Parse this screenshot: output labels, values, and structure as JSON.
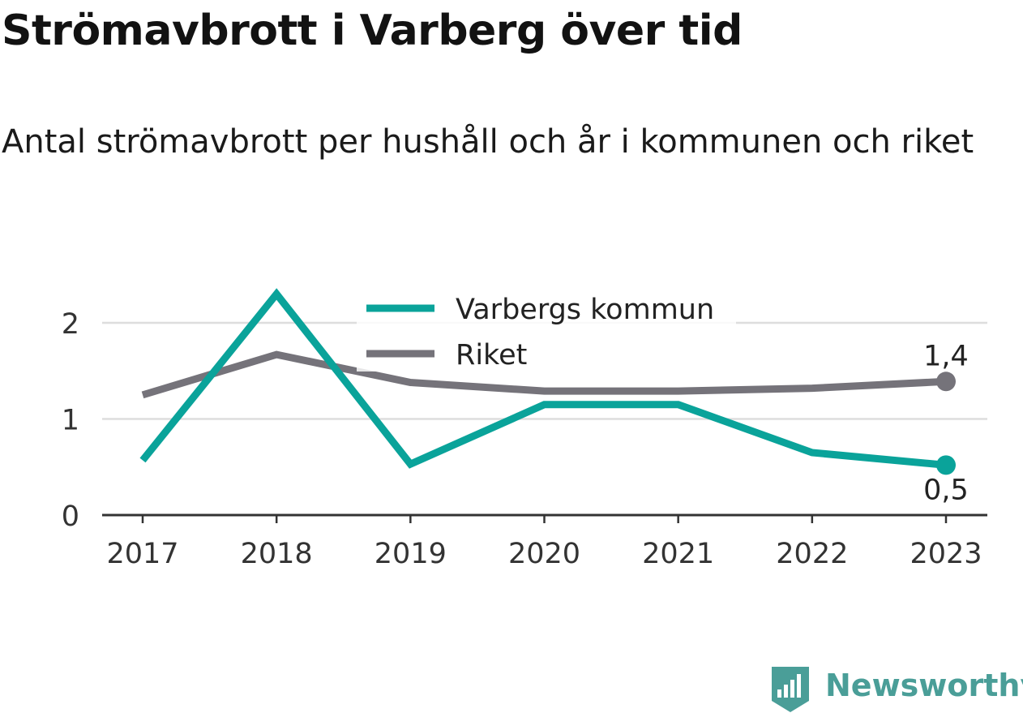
{
  "title": "Strömavbrott i Varberg över tid",
  "subtitle": "Antal strömavbrott per hushåll och år i kommunen och riket",
  "brand": {
    "name": "Newsworthy",
    "logo_icon": "newsworthy-bar-chart-icon"
  },
  "colors": {
    "varberg": "#0aa39a",
    "riket": "#75737a",
    "grid": "#dddddd",
    "axis": "#333333",
    "text": "#333333",
    "brand": "#4a9e98"
  },
  "chart_data": {
    "type": "line",
    "x": [
      "2017",
      "2018",
      "2019",
      "2020",
      "2021",
      "2022",
      "2023"
    ],
    "yticks": [
      0,
      1,
      2
    ],
    "ylim": [
      0,
      2.5
    ],
    "grid": true,
    "legend_position": "top-center",
    "series": [
      {
        "name": "Varbergs kommun",
        "color": "#0aa39a",
        "values": [
          0.57,
          2.3,
          0.53,
          1.15,
          1.15,
          0.65,
          0.52
        ],
        "end_label": "0,5"
      },
      {
        "name": "Riket",
        "color": "#75737a",
        "values": [
          1.25,
          1.67,
          1.38,
          1.29,
          1.29,
          1.32,
          1.39
        ],
        "end_label": "1,4"
      }
    ]
  }
}
